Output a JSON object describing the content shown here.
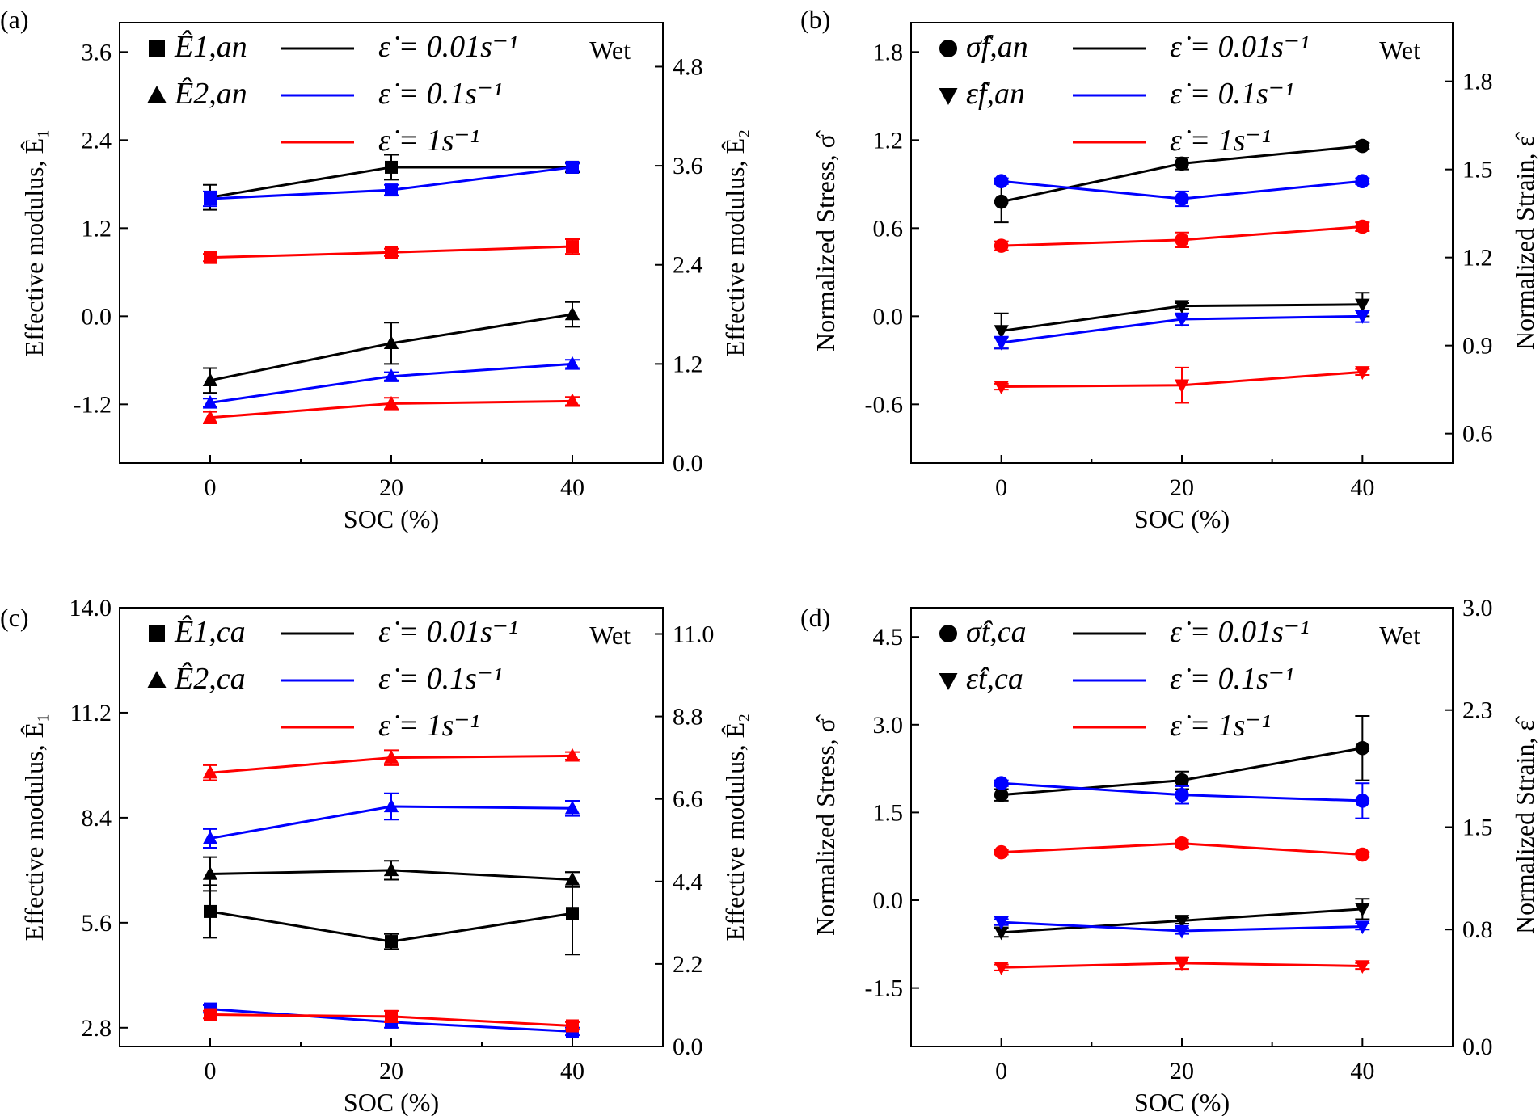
{
  "colors": {
    "black": "#000000",
    "blue": "#0000ff",
    "red": "#ff0000"
  },
  "chart_data": [
    {
      "panel_label": "(a)",
      "type": "line",
      "xlabel": "SOC (%)",
      "ylabel_left": "Effective modulus, Ê₁",
      "ylabel_right": "Effective modulus, Ê₂",
      "x_ticks": [
        "0",
        "20",
        "40"
      ],
      "xlim": [
        -10,
        50
      ],
      "ylim_left": [
        -2.0,
        4.0
      ],
      "ylim_right": [
        0.0,
        5.333
      ],
      "yticks_left": [
        "-1.2",
        "0.0",
        "1.2",
        "2.4",
        "3.6"
      ],
      "yticks_right": [
        "0.0",
        "1.2",
        "2.4",
        "3.6",
        "4.8"
      ],
      "annotation": "Wet",
      "marker_legend": [
        {
          "marker": "square",
          "label": "Ê1,an"
        },
        {
          "marker": "triangle",
          "label": "Ê2,an"
        }
      ],
      "rate_legend": [
        {
          "color": "black",
          "label": "ε̇ = 0.01s⁻¹"
        },
        {
          "color": "blue",
          "label": "ε̇ = 0.1s⁻¹"
        },
        {
          "color": "red",
          "label": "ε̇ = 1s⁻¹"
        }
      ],
      "series": [
        {
          "axis": "left",
          "marker": "square",
          "color": "black",
          "x": [
            0,
            20,
            40
          ],
          "y": [
            1.62,
            2.03,
            2.03
          ],
          "err": [
            0.17,
            0.17,
            0.07
          ]
        },
        {
          "axis": "left",
          "marker": "square",
          "color": "blue",
          "x": [
            0,
            20,
            40
          ],
          "y": [
            1.6,
            1.72,
            2.03
          ],
          "err": [
            0.1,
            0.07,
            0.05
          ]
        },
        {
          "axis": "left",
          "marker": "square",
          "color": "red",
          "x": [
            0,
            20,
            40
          ],
          "y": [
            0.8,
            0.87,
            0.95
          ],
          "err": [
            0.05,
            0.05,
            0.1
          ]
        },
        {
          "axis": "right",
          "marker": "triangle",
          "color": "black",
          "x": [
            0,
            20,
            40
          ],
          "y": [
            1.0,
            1.45,
            1.8
          ],
          "err": [
            0.15,
            0.25,
            0.15
          ]
        },
        {
          "axis": "right",
          "marker": "triangle",
          "color": "blue",
          "x": [
            0,
            20,
            40
          ],
          "y": [
            0.73,
            1.05,
            1.2
          ],
          "err": [
            0.05,
            0.05,
            0.05
          ]
        },
        {
          "axis": "right",
          "marker": "triangle",
          "color": "red",
          "x": [
            0,
            20,
            40
          ],
          "y": [
            0.55,
            0.72,
            0.75
          ],
          "err": [
            0.07,
            0.07,
            0.05
          ]
        }
      ]
    },
    {
      "panel_label": "(b)",
      "type": "line",
      "xlabel": "SOC (%)",
      "ylabel_left": "Normalized Stress, σ̂",
      "ylabel_right": "Normalized Strain, ε̂",
      "x_ticks": [
        "0",
        "20",
        "40"
      ],
      "xlim": [
        -10,
        50
      ],
      "ylim_left": [
        -1.0,
        2.0
      ],
      "ylim_right": [
        0.5,
        2.0
      ],
      "yticks_left": [
        "-0.6",
        "0.0",
        "0.6",
        "1.2",
        "1.8"
      ],
      "yticks_right": [
        "0.6",
        "0.9",
        "1.2",
        "1.5",
        "1.8"
      ],
      "annotation": "Wet",
      "marker_legend": [
        {
          "marker": "circle",
          "label": "σ̂f,an"
        },
        {
          "marker": "triangle-down",
          "label": "ε̂f,an"
        }
      ],
      "rate_legend": [
        {
          "color": "black",
          "label": "ε̇ = 0.01s⁻¹"
        },
        {
          "color": "blue",
          "label": "ε̇ = 0.1s⁻¹"
        },
        {
          "color": "red",
          "label": "ε̇ = 1s⁻¹"
        }
      ],
      "series": [
        {
          "axis": "left",
          "marker": "circle",
          "color": "black",
          "x": [
            0,
            20,
            40
          ],
          "y": [
            0.78,
            1.04,
            1.16
          ],
          "err": [
            0.14,
            0.04,
            0.02
          ]
        },
        {
          "axis": "left",
          "marker": "circle",
          "color": "blue",
          "x": [
            0,
            20,
            40
          ],
          "y": [
            0.92,
            0.8,
            0.92
          ],
          "err": [
            0.02,
            0.05,
            0.02
          ]
        },
        {
          "axis": "left",
          "marker": "circle",
          "color": "red",
          "x": [
            0,
            20,
            40
          ],
          "y": [
            0.48,
            0.52,
            0.61
          ],
          "err": [
            0.03,
            0.05,
            0.03
          ]
        },
        {
          "axis": "right",
          "marker": "triangle-down",
          "color": "black",
          "x": [
            0,
            20,
            40
          ],
          "y": [
            0.95,
            1.035,
            1.04
          ],
          "err": [
            0.06,
            0.01,
            0.04
          ]
        },
        {
          "axis": "right",
          "marker": "triangle-down",
          "color": "blue",
          "x": [
            0,
            20,
            40
          ],
          "y": [
            0.91,
            0.99,
            1.0
          ],
          "err": [
            0.02,
            0.02,
            0.02
          ]
        },
        {
          "axis": "right",
          "marker": "triangle-down",
          "color": "red",
          "x": [
            0,
            20,
            40
          ],
          "y": [
            0.76,
            0.765,
            0.81
          ],
          "err": [
            0.01,
            0.06,
            0.01
          ]
        }
      ]
    },
    {
      "panel_label": "(c)",
      "type": "line",
      "xlabel": "SOC (%)",
      "ylabel_left": "Effective modulus, Ê₁",
      "ylabel_right": "Effective modulus, Ê₂",
      "x_ticks": [
        "0",
        "20",
        "40"
      ],
      "xlim": [
        -10,
        50
      ],
      "ylim_left": [
        2.3,
        14.0
      ],
      "ylim_right": [
        0.0,
        11.7
      ],
      "yticks_left": [
        "2.8",
        "5.6",
        "8.4",
        "11.2",
        "14.0"
      ],
      "yticks_right": [
        "0.0",
        "2.2",
        "4.4",
        "6.6",
        "8.8",
        "11.0"
      ],
      "annotation": "Wet",
      "marker_legend": [
        {
          "marker": "square",
          "label": "Ê1,ca"
        },
        {
          "marker": "triangle",
          "label": "Ê2,ca"
        }
      ],
      "rate_legend": [
        {
          "color": "black",
          "label": "ε̇ = 0.01s⁻¹"
        },
        {
          "color": "blue",
          "label": "ε̇ = 0.1s⁻¹"
        },
        {
          "color": "red",
          "label": "ε̇ = 1s⁻¹"
        }
      ],
      "series": [
        {
          "axis": "left",
          "marker": "square",
          "color": "black",
          "x": [
            0,
            20,
            40
          ],
          "y": [
            5.9,
            5.1,
            5.85
          ],
          "err": [
            0.7,
            0.2,
            1.1
          ]
        },
        {
          "axis": "left",
          "marker": "square",
          "color": "blue",
          "x": [
            0,
            20,
            40
          ],
          "y": [
            3.3,
            2.95,
            2.7
          ],
          "err": [
            0.1,
            0.15,
            0.1
          ]
        },
        {
          "axis": "left",
          "marker": "square",
          "color": "red",
          "x": [
            0,
            20,
            40
          ],
          "y": [
            3.15,
            3.1,
            2.85
          ],
          "err": [
            0.1,
            0.15,
            0.1
          ]
        },
        {
          "axis": "right",
          "marker": "triangle",
          "color": "black",
          "x": [
            0,
            20,
            40
          ],
          "y": [
            4.6,
            4.7,
            4.45
          ],
          "err": [
            0.45,
            0.25,
            0.2
          ]
        },
        {
          "axis": "right",
          "marker": "triangle",
          "color": "blue",
          "x": [
            0,
            20,
            40
          ],
          "y": [
            5.55,
            6.4,
            6.35
          ],
          "err": [
            0.25,
            0.35,
            0.2
          ]
        },
        {
          "axis": "right",
          "marker": "triangle",
          "color": "red",
          "x": [
            0,
            20,
            40
          ],
          "y": [
            7.3,
            7.7,
            7.75
          ],
          "err": [
            0.2,
            0.2,
            0.1
          ]
        }
      ]
    },
    {
      "panel_label": "(d)",
      "type": "line",
      "xlabel": "SOC (%)",
      "ylabel_left": "Normalized Stress, σ̂",
      "ylabel_right": "Normalized Strain, ε̂",
      "x_ticks": [
        "0",
        "20",
        "40"
      ],
      "xlim": [
        -10,
        50
      ],
      "ylim_left": [
        -2.5,
        5.0
      ],
      "ylim_right": [
        0.0,
        3.0
      ],
      "yticks_left": [
        "-1.5",
        "0.0",
        "1.5",
        "3.0",
        "4.5"
      ],
      "yticks_right": [
        "0.0",
        "0.8",
        "1.5",
        "2.3",
        "3.0"
      ],
      "annotation": "Wet",
      "marker_legend": [
        {
          "marker": "circle",
          "label": "σ̂t,ca"
        },
        {
          "marker": "triangle-down",
          "label": "ε̂t,ca"
        }
      ],
      "rate_legend": [
        {
          "color": "black",
          "label": "ε̇ = 0.01s⁻¹"
        },
        {
          "color": "blue",
          "label": "ε̇ = 0.1s⁻¹"
        },
        {
          "color": "red",
          "label": "ε̇ = 1s⁻¹"
        }
      ],
      "series": [
        {
          "axis": "left",
          "marker": "circle",
          "color": "black",
          "x": [
            0,
            20,
            40
          ],
          "y": [
            1.8,
            2.05,
            2.6
          ],
          "err": [
            0.1,
            0.15,
            0.55
          ]
        },
        {
          "axis": "left",
          "marker": "circle",
          "color": "blue",
          "x": [
            0,
            20,
            40
          ],
          "y": [
            2.0,
            1.8,
            1.7
          ],
          "err": [
            0.05,
            0.15,
            0.3
          ]
        },
        {
          "axis": "left",
          "marker": "circle",
          "color": "red",
          "x": [
            0,
            20,
            40
          ],
          "y": [
            0.82,
            0.97,
            0.78
          ],
          "err": [
            0.04,
            0.06,
            0.04
          ]
        },
        {
          "axis": "right",
          "marker": "triangle-down",
          "color": "black",
          "x": [
            0,
            20,
            40
          ],
          "y": [
            0.78,
            0.86,
            0.94
          ],
          "err": [
            0.03,
            0.02,
            0.07
          ]
        },
        {
          "axis": "right",
          "marker": "triangle-down",
          "color": "blue",
          "x": [
            0,
            20,
            40
          ],
          "y": [
            0.85,
            0.79,
            0.82
          ],
          "err": [
            0.02,
            0.02,
            0.02
          ]
        },
        {
          "axis": "right",
          "marker": "triangle-down",
          "color": "red",
          "x": [
            0,
            20,
            40
          ],
          "y": [
            0.54,
            0.57,
            0.55
          ],
          "err": [
            0.02,
            0.04,
            0.02
          ]
        }
      ]
    }
  ]
}
